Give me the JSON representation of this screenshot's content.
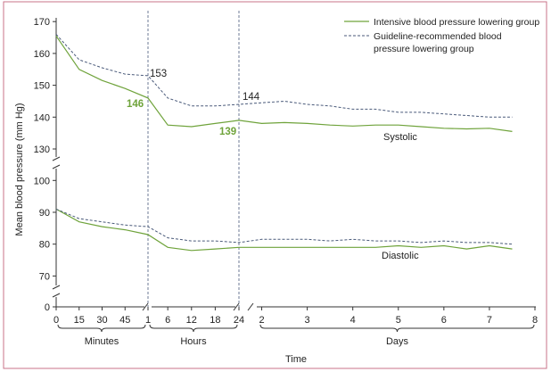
{
  "chart_data": {
    "type": "line",
    "xlabel": "Time",
    "ylabel": "Mean blood pressure (mm Hg)",
    "legend": {
      "placement": "top-right",
      "entries": [
        {
          "label": "Intensive blood pressure lowering group",
          "style": "solid"
        },
        {
          "label_lines": [
            "Guideline-recommended blood",
            "pressure lowering group"
          ],
          "style": "dashed"
        }
      ]
    },
    "y_upper_ticks": [
      "130",
      "140",
      "150",
      "160",
      "170"
    ],
    "y_lower_ticks": [
      "70",
      "80",
      "90",
      "100"
    ],
    "y_zero_tick": "0",
    "x_ticks_minutes": [
      "0",
      "15",
      "30",
      "45"
    ],
    "x_ticks_hours": [
      "1",
      "6",
      "12",
      "18",
      "24"
    ],
    "x_ticks_days": [
      "2",
      "3",
      "4",
      "5",
      "6",
      "7",
      "8"
    ],
    "time_groups": [
      "Minutes",
      "Hours",
      "Days"
    ],
    "annotations": {
      "intensive_1h": "146",
      "guideline_1h": "153",
      "intensive_24h": "139",
      "guideline_24h": "144",
      "systolic": "Systolic",
      "diastolic": "Diastolic"
    },
    "colors": {
      "intensive": "#6fa33b",
      "guideline": "#4a5a7a",
      "axis": "#333333",
      "frame": "#c9738a"
    },
    "time_points": [
      "0 min",
      "15 min",
      "30 min",
      "45 min",
      "1 h",
      "6 h",
      "12 h",
      "18 h",
      "24 h",
      "2 d",
      "2.5 d",
      "3 d",
      "3.5 d",
      "4 d",
      "4.5 d",
      "5 d",
      "5.5 d",
      "6 d",
      "6.5 d",
      "7 d",
      "7.5 d"
    ],
    "series": [
      {
        "name": "Intensive blood pressure lowering group",
        "group": "Systolic",
        "values": [
          165.5,
          155,
          151.5,
          149,
          146,
          137.5,
          137,
          138,
          139,
          138,
          138.3,
          138,
          137.5,
          137.2,
          137.5,
          137.5,
          137,
          136.5,
          136.3,
          136.5,
          135.5
        ]
      },
      {
        "name": "Guideline-recommended blood pressure lowering group",
        "group": "Systolic",
        "values": [
          166,
          158,
          155.5,
          153.5,
          153,
          146,
          143.5,
          143.5,
          144,
          144.5,
          145,
          144,
          143.5,
          142.5,
          142.5,
          141.5,
          141.5,
          141,
          140.5,
          140,
          140
        ]
      },
      {
        "name": "Intensive blood pressure lowering group",
        "group": "Diastolic",
        "values": [
          91,
          87,
          85.5,
          84.5,
          83,
          79,
          78,
          78.5,
          79,
          79,
          79,
          79,
          79,
          79,
          79,
          79.5,
          79,
          79.5,
          78.5,
          79.5,
          78.5
        ]
      },
      {
        "name": "Guideline-recommended blood pressure lowering group",
        "group": "Diastolic",
        "values": [
          91,
          88,
          87,
          86,
          85.5,
          82,
          81,
          81,
          80.5,
          81.5,
          81.5,
          81.5,
          81,
          81.5,
          81,
          81,
          80.5,
          81,
          80.5,
          80.5,
          80
        ]
      }
    ]
  }
}
